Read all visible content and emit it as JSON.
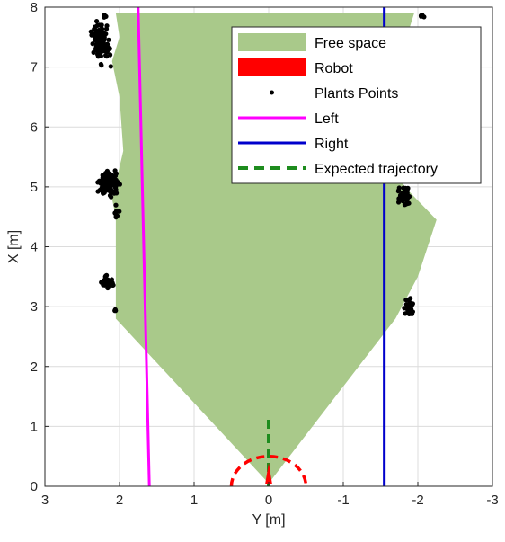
{
  "chart_data": {
    "type": "scatter",
    "xlabel": "Y [m]",
    "ylabel": "X [m]",
    "xlim": [
      3,
      -3
    ],
    "ylim": [
      0,
      8
    ],
    "x_ticks": [
      "3",
      "2",
      "1",
      "0",
      "-1",
      "-2",
      "-3"
    ],
    "y_ticks": [
      "0",
      "1",
      "2",
      "3",
      "4",
      "5",
      "6",
      "7",
      "8"
    ],
    "grid": true,
    "legend_position": "top-right",
    "legend": [
      {
        "key": "free",
        "label": "Free space"
      },
      {
        "key": "robot",
        "label": "Robot"
      },
      {
        "key": "plants",
        "label": "Plants Points"
      },
      {
        "key": "left",
        "label": "Left"
      },
      {
        "key": "right",
        "label": "Right"
      },
      {
        "key": "expected",
        "label": "Expected trajectory"
      }
    ],
    "colors": {
      "free": "#a9c98a",
      "robot": "#ff0000",
      "plants": "#000000",
      "left": "#ff00ff",
      "right": "#0000cc",
      "expected": "#1e8c1e"
    },
    "free_space_polygon": [
      [
        0.0,
        0.05
      ],
      [
        2.05,
        2.8
      ],
      [
        2.05,
        3.8
      ],
      [
        2.05,
        4.5
      ],
      [
        2.1,
        4.8
      ],
      [
        1.95,
        5.6
      ],
      [
        2.0,
        6.5
      ],
      [
        2.1,
        7.1
      ],
      [
        2.0,
        7.5
      ],
      [
        2.05,
        7.9
      ],
      [
        -1.95,
        7.9
      ],
      [
        -1.85,
        7.5
      ],
      [
        -1.8,
        6.8
      ],
      [
        -1.7,
        5.9
      ],
      [
        -1.7,
        5.2
      ],
      [
        -1.9,
        4.9
      ],
      [
        -2.25,
        4.45
      ],
      [
        -2.0,
        3.5
      ],
      [
        -1.7,
        2.8
      ],
      [
        0.0,
        0.05
      ]
    ],
    "series": [
      {
        "name": "Left",
        "x": [
          1.6,
          1.75
        ],
        "y": [
          0,
          8
        ]
      },
      {
        "name": "Right",
        "x": [
          -1.55,
          -1.55
        ],
        "y": [
          0,
          8
        ]
      },
      {
        "name": "Expected trajectory",
        "x": [
          0,
          0
        ],
        "y": [
          0,
          1.12
        ]
      }
    ],
    "robot": {
      "x": 0,
      "y": 0,
      "radius": 0.5
    },
    "plant_clusters": [
      {
        "x": 2.25,
        "y": 7.4,
        "xspread": 0.16,
        "yspread": 0.45,
        "n": 110
      },
      {
        "x": 2.2,
        "y": 7.85,
        "xspread": 0.05,
        "yspread": 0.06,
        "n": 4
      },
      {
        "x": 2.15,
        "y": 5.05,
        "xspread": 0.18,
        "yspread": 0.28,
        "n": 120
      },
      {
        "x": 2.05,
        "y": 4.6,
        "xspread": 0.06,
        "yspread": 0.16,
        "n": 10
      },
      {
        "x": 2.15,
        "y": 3.4,
        "xspread": 0.12,
        "yspread": 0.14,
        "n": 45
      },
      {
        "x": 2.05,
        "y": 2.95,
        "xspread": 0.03,
        "yspread": 0.05,
        "n": 3
      },
      {
        "x": -1.82,
        "y": 4.85,
        "xspread": 0.13,
        "yspread": 0.22,
        "n": 40
      },
      {
        "x": -1.88,
        "y": 3.0,
        "xspread": 0.08,
        "yspread": 0.18,
        "n": 38
      },
      {
        "x": -2.05,
        "y": 7.85,
        "xspread": 0.05,
        "yspread": 0.05,
        "n": 5
      }
    ]
  }
}
